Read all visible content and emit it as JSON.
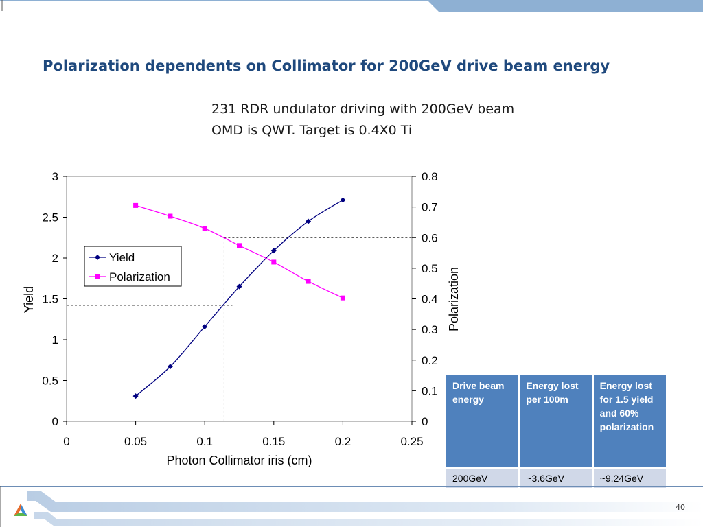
{
  "slide": {
    "title": "Polarization dependents on Collimator for 200GeV drive beam energy",
    "subtitle_lines": [
      "231 RDR undulator driving with 200GeV beam",
      "OMD is QWT.  Target is 0.4X0 Ti"
    ],
    "page_number": "40",
    "colors": {
      "title": "#1f497d",
      "band": "#8eb0d3",
      "table_header": "#4f81bd",
      "table_cell": "#d0d8e8"
    }
  },
  "chart_data": {
    "type": "line",
    "xlabel": "Photon Collimator iris (cm)",
    "ylabel": "Yield",
    "y2label": "Polarization",
    "xlim": [
      0,
      0.25
    ],
    "ylim": [
      0,
      3
    ],
    "y2lim": [
      0,
      0.8
    ],
    "x_ticks": [
      "0",
      "0.05",
      "0.1",
      "0.15",
      "0.2",
      "0.25"
    ],
    "y_ticks": [
      "0",
      "0.5",
      "1",
      "1.5",
      "2",
      "2.5",
      "3"
    ],
    "y2_ticks": [
      "0",
      "0.1",
      "0.2",
      "0.3",
      "0.4",
      "0.5",
      "0.6",
      "0.7",
      "0.8"
    ],
    "grid": false,
    "legend_position": "center-left",
    "x": [
      0.05,
      0.075,
      0.1,
      0.125,
      0.15,
      0.175,
      0.2
    ],
    "series": [
      {
        "name": "Yield",
        "axis": "left",
        "color": "#000080",
        "marker": "diamond",
        "values": [
          0.31,
          0.67,
          1.16,
          1.65,
          2.09,
          2.45,
          2.71
        ]
      },
      {
        "name": "Polarization",
        "axis": "right",
        "color": "#ff00ff",
        "marker": "square",
        "values": [
          0.705,
          0.67,
          0.63,
          0.574,
          0.52,
          0.457,
          0.403
        ]
      }
    ],
    "reference_lines": [
      {
        "axis": "left",
        "y": 1.42,
        "x_from": 0,
        "x_to": 0.12
      },
      {
        "axis": "right",
        "y": 0.6,
        "x_from": 0.114,
        "x_to": 0.25
      },
      {
        "axis": "x",
        "x": 0.114,
        "y_from": 0,
        "y_to": 2.25
      }
    ]
  },
  "table": {
    "headers": [
      "Drive beam energy",
      "Energy lost per 100m",
      "Energy lost for 1.5 yield and 60% polarization"
    ],
    "rows": [
      [
        "200GeV",
        "~3.6GeV",
        "~9.24GeV"
      ]
    ]
  }
}
